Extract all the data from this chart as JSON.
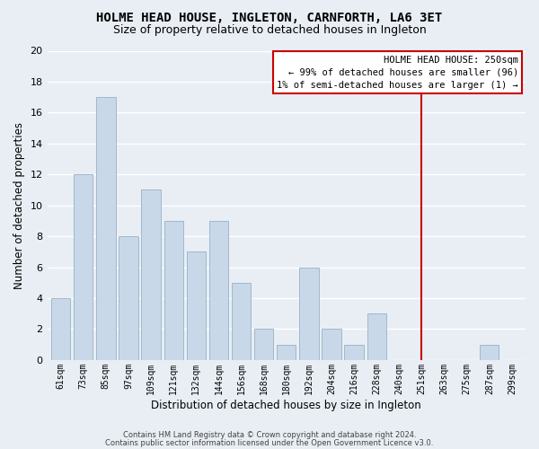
{
  "title": "HOLME HEAD HOUSE, INGLETON, CARNFORTH, LA6 3ET",
  "subtitle": "Size of property relative to detached houses in Ingleton",
  "xlabel": "Distribution of detached houses by size in Ingleton",
  "ylabel": "Number of detached properties",
  "bar_labels": [
    "61sqm",
    "73sqm",
    "85sqm",
    "97sqm",
    "109sqm",
    "121sqm",
    "132sqm",
    "144sqm",
    "156sqm",
    "168sqm",
    "180sqm",
    "192sqm",
    "204sqm",
    "216sqm",
    "228sqm",
    "240sqm",
    "251sqm",
    "263sqm",
    "275sqm",
    "287sqm",
    "299sqm"
  ],
  "bar_values": [
    4,
    12,
    17,
    8,
    11,
    9,
    7,
    9,
    5,
    2,
    1,
    6,
    2,
    1,
    3,
    0,
    0,
    0,
    0,
    1,
    0
  ],
  "bar_color": "#c8d8e8",
  "bar_edge_color": "#a0b8cc",
  "vline_x_index": 16,
  "vline_color": "#cc0000",
  "annotation_title": "HOLME HEAD HOUSE: 250sqm",
  "annotation_line1": "← 99% of detached houses are smaller (96)",
  "annotation_line2": "1% of semi-detached houses are larger (1) →",
  "annotation_box_color": "#ffffff",
  "annotation_box_edge": "#cc0000",
  "ylim": [
    0,
    20
  ],
  "yticks": [
    0,
    2,
    4,
    6,
    8,
    10,
    12,
    14,
    16,
    18,
    20
  ],
  "footer1": "Contains HM Land Registry data © Crown copyright and database right 2024.",
  "footer2": "Contains public sector information licensed under the Open Government Licence v3.0.",
  "background_color": "#e8eef4",
  "grid_color": "#ffffff",
  "title_fontsize": 10,
  "subtitle_fontsize": 9
}
